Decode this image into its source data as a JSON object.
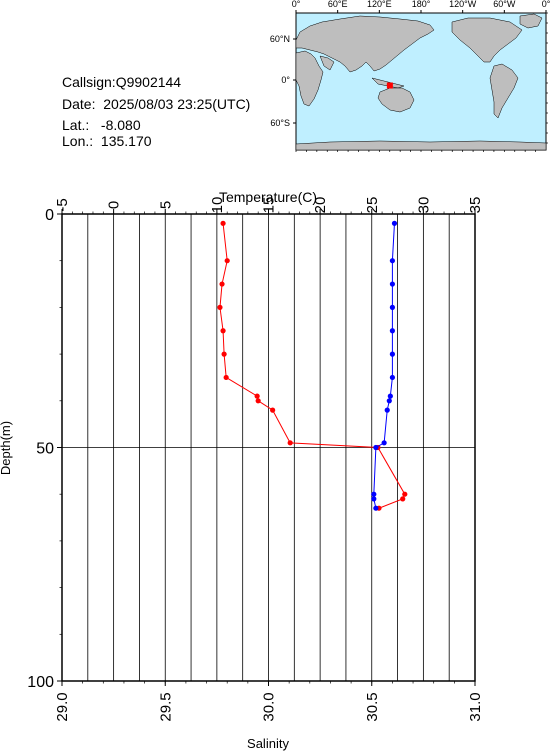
{
  "station": {
    "callsign_label": "Callsign:",
    "callsign": "Q9902144",
    "date_label": "Date:",
    "date": "2025/08/03 23:25(UTC)",
    "lat_label": "Lat.:",
    "lat": "-8.080",
    "lon_label": "Lon.:",
    "lon": "135.170"
  },
  "map": {
    "lon_ticks": [
      "0°",
      "60°E",
      "120°E",
      "180°",
      "120°W",
      "60°W",
      "0°"
    ],
    "lat_ticks": [
      "60°N",
      "0°",
      "60°S"
    ],
    "marker_color": "#ff0000",
    "ocean_color": "#bfefff",
    "land_color": "#bebebe"
  },
  "chart_data": {
    "type": "line",
    "ylabel": "Depth(m)",
    "ylim": [
      100,
      0
    ],
    "y_ticks": [
      "0",
      "50",
      "100"
    ],
    "grid": true,
    "temperature_axis": {
      "label": "Temperature(C)",
      "lim": [
        -5,
        35
      ],
      "ticks": [
        "-5",
        "0",
        "5",
        "10",
        "15",
        "20",
        "25",
        "30",
        "35"
      ],
      "position": "top"
    },
    "salinity_axis": {
      "label": "Salinity",
      "lim": [
        29.0,
        31.0
      ],
      "ticks": [
        "29.0",
        "29.5",
        "30.0",
        "30.5",
        "31.0"
      ],
      "position": "bottom"
    },
    "series": [
      {
        "axis": "temperature",
        "color": "#ff0000",
        "points": [
          {
            "value": 10.6,
            "depth": 2
          },
          {
            "value": 11.0,
            "depth": 10
          },
          {
            "value": 10.5,
            "depth": 15
          },
          {
            "value": 10.3,
            "depth": 20
          },
          {
            "value": 10.6,
            "depth": 25
          },
          {
            "value": 10.7,
            "depth": 30
          },
          {
            "value": 10.9,
            "depth": 35
          },
          {
            "value": 13.9,
            "depth": 39
          },
          {
            "value": 14.0,
            "depth": 40
          },
          {
            "value": 15.4,
            "depth": 42
          },
          {
            "value": 17.1,
            "depth": 49
          },
          {
            "value": 25.6,
            "depth": 50
          },
          {
            "value": 28.2,
            "depth": 60
          },
          {
            "value": 28.0,
            "depth": 61
          },
          {
            "value": 25.7,
            "depth": 63
          }
        ]
      },
      {
        "axis": "salinity",
        "color": "#0000ff",
        "points": [
          {
            "value": 30.61,
            "depth": 2
          },
          {
            "value": 30.6,
            "depth": 10
          },
          {
            "value": 30.6,
            "depth": 15
          },
          {
            "value": 30.6,
            "depth": 20
          },
          {
            "value": 30.6,
            "depth": 25
          },
          {
            "value": 30.6,
            "depth": 30
          },
          {
            "value": 30.6,
            "depth": 35
          },
          {
            "value": 30.59,
            "depth": 39
          },
          {
            "value": 30.585,
            "depth": 40
          },
          {
            "value": 30.575,
            "depth": 42
          },
          {
            "value": 30.56,
            "depth": 49
          },
          {
            "value": 30.52,
            "depth": 50
          },
          {
            "value": 30.51,
            "depth": 60
          },
          {
            "value": 30.51,
            "depth": 61
          },
          {
            "value": 30.52,
            "depth": 63
          }
        ]
      }
    ]
  }
}
